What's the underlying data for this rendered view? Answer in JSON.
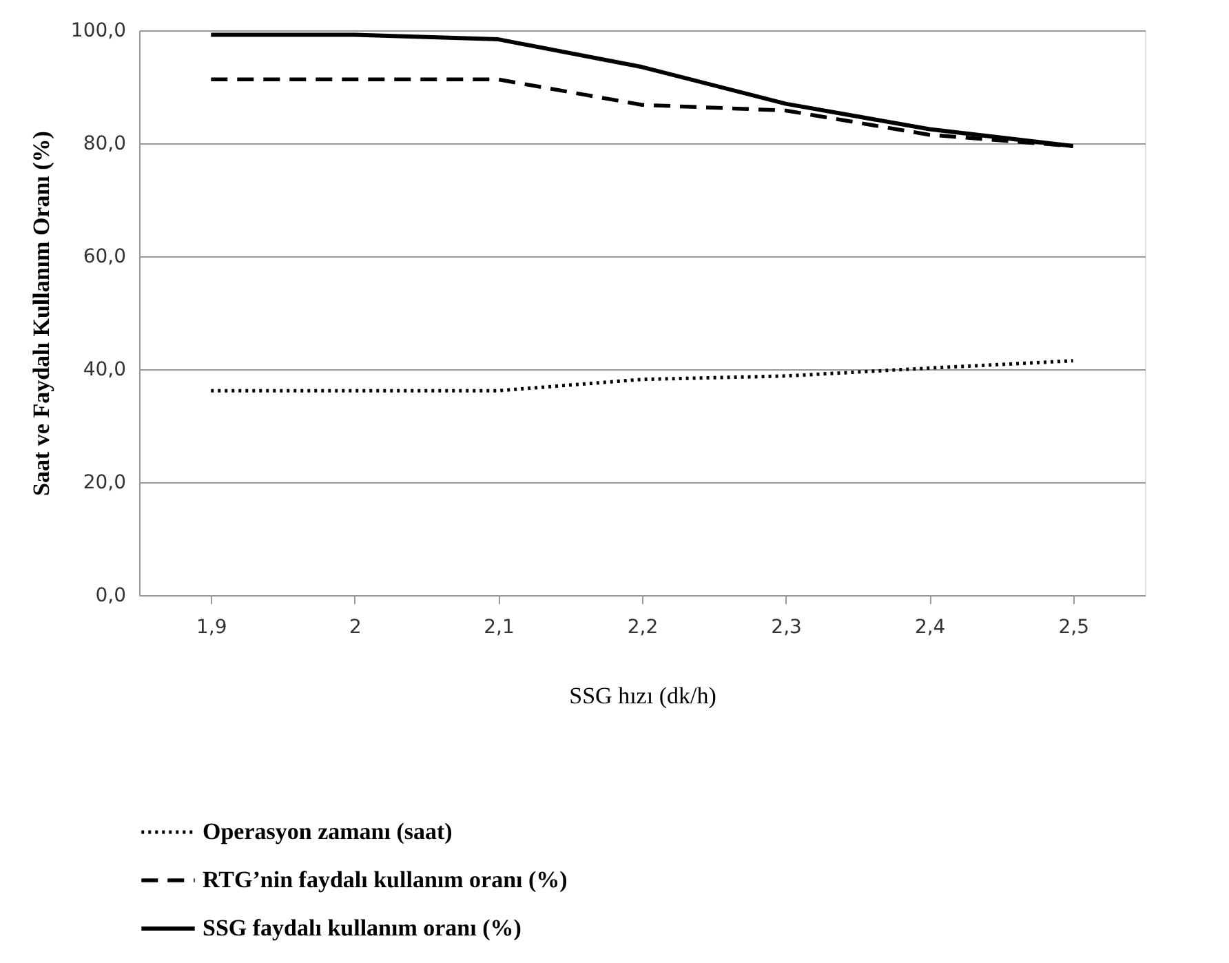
{
  "chart_data": {
    "type": "line",
    "xlabel": "SSG hızı (dk/h)",
    "ylabel": "Saat ve Faydalı Kullanım Oranı (%)",
    "categories": [
      "1,9",
      "2",
      "2,1",
      "2,2",
      "2,3",
      "2,4",
      "2,5"
    ],
    "series": [
      {
        "name": "Operasyon zamanı (saat)",
        "color": "#000000",
        "line_style": "dotted",
        "values": [
          36.2,
          36.2,
          36.2,
          38.2,
          38.8,
          40.2,
          41.5
        ]
      },
      {
        "name": "RTG’nin faydalı kullanım oranı (%)",
        "color": "#000000",
        "line_style": "dashed",
        "values": [
          91.3,
          91.3,
          91.3,
          86.8,
          85.8,
          81.5,
          79.5
        ]
      },
      {
        "name": "SSG faydalı kullanım oranı (%)",
        "color": "#000000",
        "line_style": "solid",
        "values": [
          99.2,
          99.2,
          98.4,
          93.5,
          87.0,
          82.5,
          79.5
        ]
      }
    ],
    "ylim": [
      0,
      100
    ],
    "yticks": [
      {
        "value": 0,
        "label": "0,0"
      },
      {
        "value": 20,
        "label": "20,0"
      },
      {
        "value": 40,
        "label": "40,0"
      },
      {
        "value": 60,
        "label": "60,0"
      },
      {
        "value": 80,
        "label": "80,0"
      },
      {
        "value": 100,
        "label": "100,0"
      }
    ],
    "grid": "y",
    "legend": "bottom",
    "marker": "none"
  }
}
